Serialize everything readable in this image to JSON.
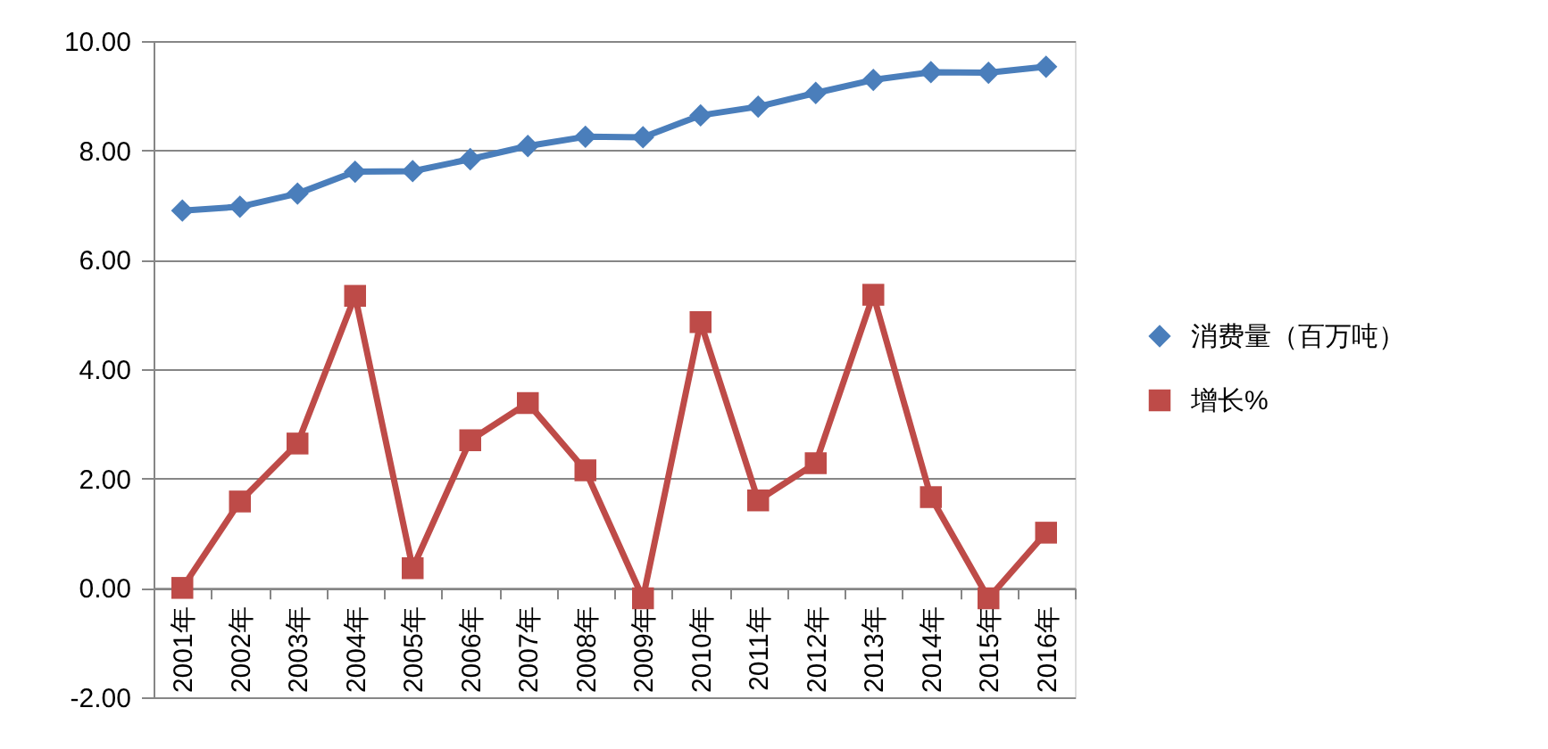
{
  "chart_data": {
    "type": "line",
    "categories": [
      "2001年",
      "2002年",
      "2003年",
      "2004年",
      "2005年",
      "2006年",
      "2007年",
      "2008年",
      "2009年",
      "2010年",
      "2011年",
      "2012年",
      "2013年",
      "2014年",
      "2015年",
      "2016年"
    ],
    "series": [
      {
        "name": "消费量（百万吨）",
        "color": "#4a7ebb",
        "marker": "diamond",
        "values": [
          6.9,
          6.97,
          7.21,
          7.61,
          7.62,
          7.84,
          8.08,
          8.25,
          8.24,
          8.64,
          8.8,
          9.05,
          9.29,
          9.43,
          9.42,
          9.53
        ]
      },
      {
        "name": "增长%",
        "color": "#be4b48",
        "marker": "square",
        "values": [
          0.0,
          1.58,
          2.64,
          5.34,
          0.36,
          2.7,
          3.38,
          2.15,
          -0.19,
          4.86,
          1.6,
          2.28,
          5.36,
          1.66,
          -0.19,
          1.01
        ]
      }
    ],
    "ylim": [
      -2,
      10
    ],
    "yticks": [
      {
        "value": -2,
        "label": "-2.00"
      },
      {
        "value": 0,
        "label": "0.00"
      },
      {
        "value": 2,
        "label": "2.00"
      },
      {
        "value": 4,
        "label": "4.00"
      },
      {
        "value": 6,
        "label": "6.00"
      },
      {
        "value": 8,
        "label": "8.00"
      },
      {
        "value": 10,
        "label": "10.00"
      }
    ],
    "grid": "y",
    "legend": "right",
    "line_style": "solid"
  }
}
